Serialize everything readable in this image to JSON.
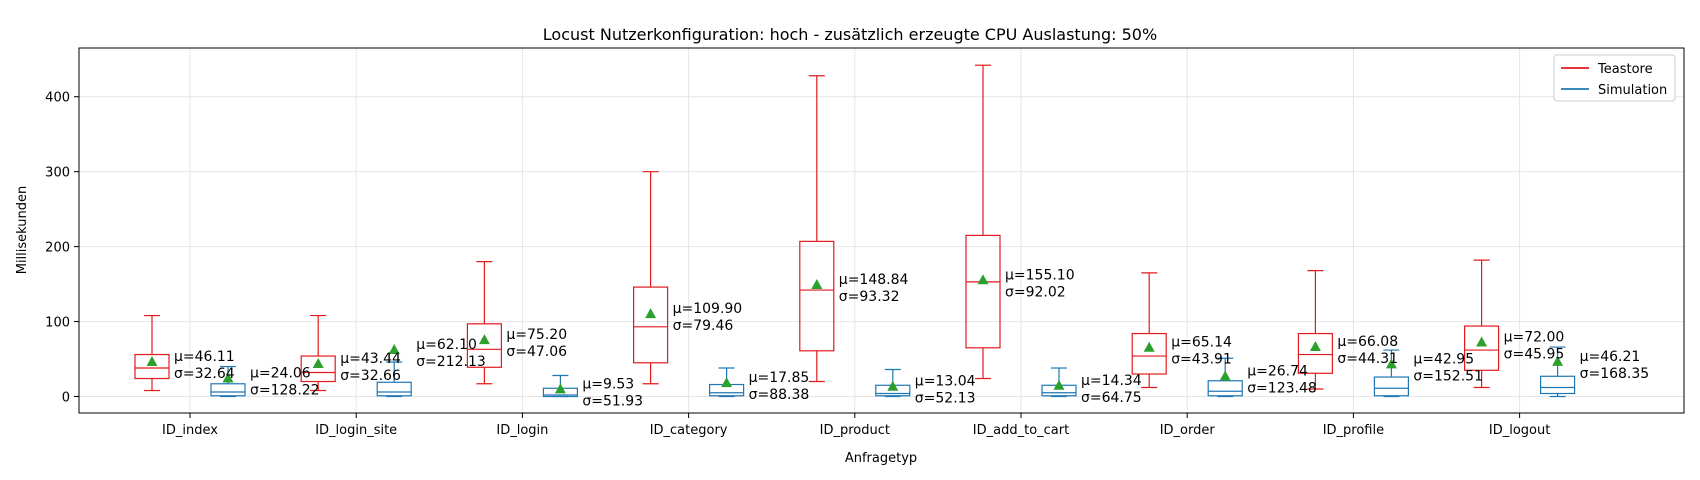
{
  "chart_data": {
    "type": "box",
    "title": "Locust Nutzerkonfiguration: hoch - zusätzlich erzeugte CPU Auslastung: 50%",
    "xlabel": "Anfragetyp",
    "ylabel": "Millisekunden",
    "ylim": [
      -22,
      465
    ],
    "yticks": [
      0,
      100,
      200,
      300,
      400
    ],
    "grid": true,
    "legend_position": "top-right",
    "categories": [
      "ID_index",
      "ID_login_site",
      "ID_login",
      "ID_category",
      "ID_product",
      "ID_add_to_cart",
      "ID_order",
      "ID_profile",
      "ID_logout"
    ],
    "series": [
      {
        "name": "Teastore",
        "color": "#e31a1c",
        "boxes": [
          {
            "whislo": 8,
            "q1": 24,
            "med": 38,
            "q3": 56,
            "whishi": 108,
            "mean": 46.11,
            "std": 32.64,
            "mean_label": "μ=46.11",
            "std_label": "σ=32.64"
          },
          {
            "whislo": 8,
            "q1": 20,
            "med": 32,
            "q3": 54,
            "whishi": 108,
            "mean": 43.44,
            "std": 32.66,
            "mean_label": "μ=43.44",
            "std_label": "σ=32.66"
          },
          {
            "whislo": 17,
            "q1": 39,
            "med": 63,
            "q3": 97,
            "whishi": 180,
            "mean": 75.2,
            "std": 47.06,
            "mean_label": "μ=75.20",
            "std_label": "σ=47.06"
          },
          {
            "whislo": 17,
            "q1": 45,
            "med": 93,
            "q3": 146,
            "whishi": 300,
            "mean": 109.9,
            "std": 79.46,
            "mean_label": "μ=109.90",
            "std_label": "σ=79.46"
          },
          {
            "whislo": 20,
            "q1": 61,
            "med": 142,
            "q3": 207,
            "whishi": 428,
            "mean": 148.84,
            "std": 93.32,
            "mean_label": "μ=148.84",
            "std_label": "σ=93.32"
          },
          {
            "whislo": 24,
            "q1": 65,
            "med": 153,
            "q3": 215,
            "whishi": 442,
            "mean": 155.1,
            "std": 92.02,
            "mean_label": "μ=155.10",
            "std_label": "σ=92.02"
          },
          {
            "whislo": 12,
            "q1": 30,
            "med": 54,
            "q3": 84,
            "whishi": 165,
            "mean": 65.14,
            "std": 43.91,
            "mean_label": "μ=65.14",
            "std_label": "σ=43.91"
          },
          {
            "whislo": 10,
            "q1": 31,
            "med": 56,
            "q3": 84,
            "whishi": 168,
            "mean": 66.08,
            "std": 44.31,
            "mean_label": "μ=66.08",
            "std_label": "σ=44.31"
          },
          {
            "whislo": 12,
            "q1": 35,
            "med": 62,
            "q3": 94,
            "whishi": 182,
            "mean": 72.0,
            "std": 45.95,
            "mean_label": "μ=72.00",
            "std_label": "σ=45.95"
          }
        ]
      },
      {
        "name": "Simulation",
        "color": "#1f77b4",
        "boxes": [
          {
            "whislo": 0,
            "q1": 1,
            "med": 6,
            "q3": 17,
            "whishi": 40,
            "mean": 24.06,
            "std": 128.22,
            "mean_label": "μ=24.06",
            "std_label": "σ=128.22"
          },
          {
            "whislo": 0,
            "q1": 1,
            "med": 6,
            "q3": 19,
            "whishi": 46,
            "mean": 62.1,
            "std": 212.13,
            "mean_label": "μ=62.10",
            "std_label": "σ=212.13"
          },
          {
            "whislo": 0,
            "q1": 0,
            "med": 2,
            "q3": 11,
            "whishi": 28,
            "mean": 9.53,
            "std": 51.93,
            "mean_label": "μ=9.53",
            "std_label": "σ=51.93"
          },
          {
            "whislo": 0,
            "q1": 1,
            "med": 5,
            "q3": 16,
            "whishi": 38,
            "mean": 17.85,
            "std": 88.38,
            "mean_label": "μ=17.85",
            "std_label": "σ=88.38"
          },
          {
            "whislo": 0,
            "q1": 1,
            "med": 4,
            "q3": 15,
            "whishi": 36,
            "mean": 13.04,
            "std": 52.13,
            "mean_label": "μ=13.04",
            "std_label": "σ=52.13"
          },
          {
            "whislo": 0,
            "q1": 1,
            "med": 5,
            "q3": 15,
            "whishi": 38,
            "mean": 14.34,
            "std": 64.75,
            "mean_label": "μ=14.34",
            "std_label": "σ=64.75"
          },
          {
            "whislo": 0,
            "q1": 1,
            "med": 7,
            "q3": 21,
            "whishi": 51,
            "mean": 26.74,
            "std": 123.48,
            "mean_label": "μ=26.74",
            "std_label": "σ=123.48"
          },
          {
            "whislo": 0,
            "q1": 1,
            "med": 11,
            "q3": 26,
            "whishi": 62,
            "mean": 42.95,
            "std": 152.51,
            "mean_label": "μ=42.95",
            "std_label": "σ=152.51"
          },
          {
            "whislo": 0,
            "q1": 4,
            "med": 12,
            "q3": 27,
            "whishi": 66,
            "mean": 46.21,
            "std": 168.35,
            "mean_label": "μ=46.21",
            "std_label": "σ=168.35"
          }
        ]
      }
    ],
    "mean_marker_color": "#2ca02c"
  }
}
